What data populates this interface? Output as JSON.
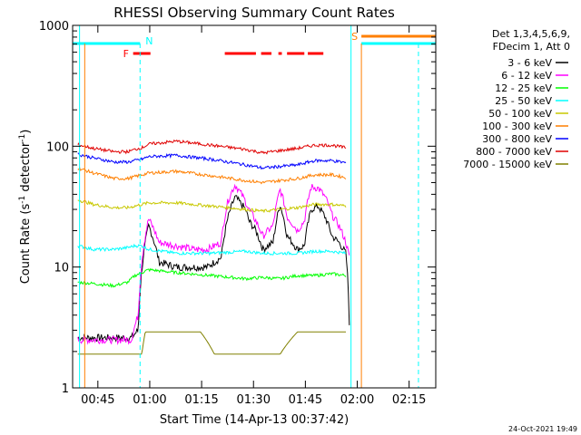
{
  "chart_data": {
    "type": "line",
    "title": "RHESSI Observing Summary Count Rates",
    "xlabel": "Start Time (14-Apr-13 00:37:42)",
    "ylabel_pre": "Count Rate (s",
    "ylabel_sup1": "-1",
    "ylabel_mid": " detector",
    "ylabel_sup2": "-1",
    "ylabel_post": ")",
    "footer_date": "24-Oct-2021 19:49",
    "x_unit": "minutes after 00:37:42",
    "xlim": [
      0,
      105
    ],
    "ylim": [
      1,
      1000
    ],
    "y_scale": "log",
    "grid": false,
    "x_ticks": [
      {
        "label": "00:45",
        "value": 7.3
      },
      {
        "label": "01:00",
        "value": 22.3
      },
      {
        "label": "01:15",
        "value": 37.3
      },
      {
        "label": "01:30",
        "value": 52.3
      },
      {
        "label": "01:45",
        "value": 67.3
      },
      {
        "label": "02:00",
        "value": 82.3
      },
      {
        "label": "02:15",
        "value": 97.3
      }
    ],
    "y_ticks": [
      {
        "label": "1",
        "value": 1
      },
      {
        "label": "10",
        "value": 10
      },
      {
        "label": "100",
        "value": 100
      },
      {
        "label": "1000",
        "value": 1000
      }
    ],
    "legend_header": [
      "Det 1,3,4,5,6,9,",
      "FDecim 1, Att 0"
    ],
    "legend_placement": "right",
    "series": [
      {
        "name": "3 - 6 keV",
        "color": "#000000",
        "x": [
          1.5,
          8,
          15,
          17,
          19,
          22,
          25,
          30,
          35,
          39,
          43,
          45,
          47,
          50,
          51,
          53,
          55,
          58,
          60,
          62,
          65,
          67,
          69,
          71,
          73,
          75,
          77,
          79,
          80
        ],
        "y": [
          2.6,
          2.6,
          2.6,
          2.6,
          3.0,
          22,
          11,
          10,
          10,
          10,
          12,
          26,
          38,
          30,
          24,
          20,
          14,
          16,
          33,
          18,
          14,
          15,
          30,
          32,
          26,
          18,
          16,
          13,
          3.5
        ]
      },
      {
        "name": "6 - 12 keV",
        "color": "#ff00ff",
        "x": [
          1.5,
          8,
          15,
          17,
          19,
          22,
          25,
          30,
          35,
          39,
          43,
          45,
          47,
          50,
          51,
          53,
          55,
          58,
          60,
          62,
          65,
          67,
          69,
          71,
          73,
          75,
          77,
          79,
          80
        ],
        "y": [
          2.5,
          2.5,
          2.5,
          2.5,
          4,
          25,
          16,
          15,
          14,
          14,
          16,
          36,
          48,
          35,
          30,
          24,
          18,
          22,
          44,
          26,
          20,
          24,
          46,
          45,
          38,
          27,
          22,
          16,
          12
        ]
      },
      {
        "name": "12 - 25 keV",
        "color": "#00ff00",
        "x": [
          1.5,
          6,
          12,
          16,
          18,
          20,
          22,
          30,
          40,
          50,
          55,
          60,
          65,
          70,
          75,
          79
        ],
        "y": [
          7.5,
          7.3,
          7.0,
          7.5,
          8.5,
          9,
          9.5,
          9.0,
          8.5,
          8.0,
          8.2,
          8.0,
          8.5,
          8.5,
          8.8,
          8.5
        ]
      },
      {
        "name": "25 - 50 keV",
        "color": "#00ffff",
        "x": [
          1.5,
          6,
          12,
          16,
          18,
          20,
          22,
          30,
          40,
          50,
          55,
          60,
          65,
          70,
          75,
          79
        ],
        "y": [
          15,
          14,
          14,
          14.5,
          15,
          15,
          14,
          13,
          13,
          13.5,
          13,
          13,
          13,
          13.5,
          13.5,
          13
        ]
      },
      {
        "name": "50 - 100 keV",
        "color": "#c8c800",
        "x": [
          1.5,
          6,
          12,
          16,
          18,
          20,
          22,
          30,
          40,
          50,
          55,
          60,
          65,
          70,
          75,
          79
        ],
        "y": [
          36,
          33,
          31,
          31,
          32,
          33,
          34,
          34,
          32,
          30,
          29,
          30,
          31,
          33,
          33,
          32
        ]
      },
      {
        "name": "100 - 300 keV",
        "color": "#ff7f00",
        "x": [
          1.5,
          6,
          12,
          16,
          18,
          20,
          22,
          30,
          40,
          50,
          55,
          60,
          65,
          70,
          75,
          79
        ],
        "y": [
          66,
          60,
          54,
          54,
          56,
          58,
          60,
          62,
          57,
          52,
          50,
          52,
          54,
          58,
          58,
          55
        ]
      },
      {
        "name": "300 - 800 keV",
        "color": "#0000ff",
        "x": [
          1.5,
          6,
          12,
          16,
          18,
          20,
          22,
          30,
          40,
          50,
          55,
          60,
          65,
          70,
          75,
          79
        ],
        "y": [
          86,
          80,
          74,
          74,
          76,
          78,
          82,
          84,
          78,
          70,
          66,
          68,
          70,
          76,
          76,
          73
        ]
      },
      {
        "name": "800 - 7000 keV",
        "color": "#e00000",
        "x": [
          1.5,
          6,
          12,
          16,
          18,
          20,
          22,
          30,
          40,
          50,
          55,
          60,
          65,
          70,
          75,
          79
        ],
        "y": [
          103,
          96,
          90,
          90,
          94,
          97,
          104,
          110,
          102,
          94,
          88,
          92,
          96,
          102,
          102,
          97
        ]
      },
      {
        "name": "7000 - 15000 keV",
        "color": "#808000",
        "x": [
          1.5,
          20,
          21,
          30,
          37,
          41,
          45,
          55,
          60,
          65,
          70,
          79
        ],
        "y": [
          1.9,
          1.9,
          2.9,
          2.9,
          2.9,
          1.9,
          1.9,
          1.9,
          1.9,
          2.9,
          2.9,
          2.9
        ]
      }
    ],
    "markers": {
      "night_bars": [
        {
          "label": "N",
          "x_start": -3,
          "x_end": 19.5
        }
      ],
      "saa_bars": [
        {
          "label": "S",
          "x_start": 83.5,
          "x_end": 105
        }
      ],
      "flare_label": "F",
      "flare_segments": [
        [
          17.5,
          22.5
        ],
        [
          44,
          53
        ],
        [
          54.5,
          57.5
        ],
        [
          59.5,
          60.5
        ],
        [
          62,
          67
        ],
        [
          68,
          72.5
        ]
      ],
      "cyan_vlines_solid": [
        2,
        80.5
      ],
      "cyan_vlines_dashed": [
        19.5,
        100
      ],
      "orange_vlines_solid": [
        3.5,
        83.5
      ]
    }
  }
}
